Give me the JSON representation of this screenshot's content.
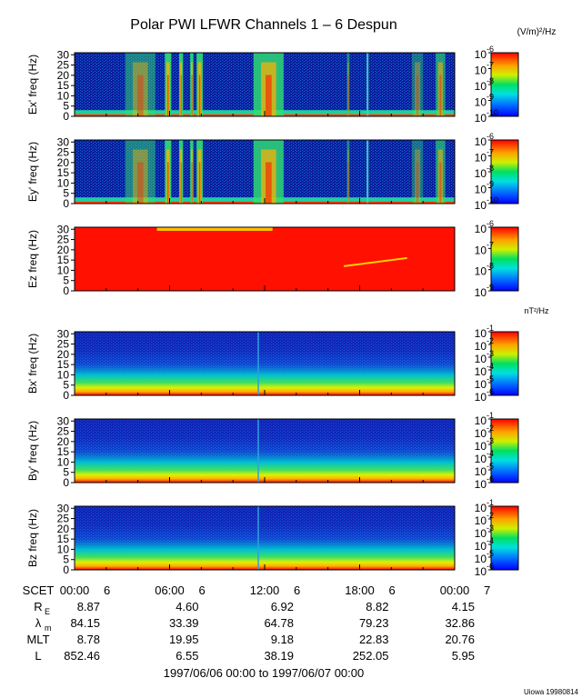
{
  "title": "Polar PWI LFWR Channels 1 – 6 Despun",
  "electric_unit": "(V/m)²/Hz",
  "magnetic_unit": "nT²/Hz",
  "credit": "Uiowa 19980814",
  "date_range": "1997/06/06 00:00 to 1997/06/07 00:00",
  "colors": {
    "low": "#0000ff",
    "mid": "#00e060",
    "high": "#ff0000"
  },
  "chart_data": {
    "type": "heatmap",
    "x_axis": {
      "label": "SCET",
      "ticks": [
        {
          "hour": 0,
          "label": "00:00",
          "day": "6"
        },
        {
          "hour": 6,
          "label": "06:00",
          "day": "6"
        },
        {
          "hour": 12,
          "label": "12:00",
          "day": "6"
        },
        {
          "hour": 18,
          "label": "18:00",
          "day": "6"
        },
        {
          "hour": 24,
          "label": "00:00",
          "day": "7"
        }
      ],
      "range": [
        0,
        24
      ]
    },
    "y_axis": {
      "range": [
        0,
        31
      ],
      "ticks": [
        "0",
        "5",
        "10",
        "15",
        "20",
        "25",
        "30"
      ]
    },
    "panels": [
      {
        "id": "ex",
        "ylabel": "Ex' freq (Hz)",
        "colorbar": [
          "10",
          "10",
          "10",
          "10",
          "10"
        ],
        "exponents": [
          "-10",
          "-9",
          "-8",
          "-7",
          "-6"
        ],
        "cmin": -10,
        "cmax": -6,
        "kind": "e"
      },
      {
        "id": "ey",
        "ylabel": "Ey' freq (Hz)",
        "colorbar": [
          "10",
          "10",
          "10",
          "10",
          "10"
        ],
        "exponents": [
          "-10",
          "-9",
          "-8",
          "-7",
          "-6"
        ],
        "cmin": -10,
        "cmax": -6,
        "kind": "e"
      },
      {
        "id": "ez",
        "ylabel": "Ez freq (Hz)",
        "colorbar": [
          "10",
          "10",
          "10",
          "10"
        ],
        "exponents": [
          "-9",
          "-8",
          "-7",
          "-6"
        ],
        "cmin": -9,
        "cmax": -6,
        "kind": "ez"
      },
      {
        "id": "bx",
        "ylabel": "Bx' freq (Hz)",
        "colorbar": [
          "10",
          "10",
          "10",
          "10",
          "10",
          "10"
        ],
        "exponents": [
          "-6",
          "-5",
          "-4",
          "-3",
          "-2",
          "-1"
        ],
        "cmin": -6,
        "cmax": -1,
        "kind": "b"
      },
      {
        "id": "by",
        "ylabel": "By' freq (Hz)",
        "colorbar": [
          "10",
          "10",
          "10",
          "10",
          "10",
          "10"
        ],
        "exponents": [
          "-6",
          "-5",
          "-4",
          "-3",
          "-2",
          "-1"
        ],
        "cmin": -6,
        "cmax": -1,
        "kind": "b"
      },
      {
        "id": "bz",
        "ylabel": "Bz freq (Hz)",
        "colorbar": [
          "10",
          "10",
          "10",
          "10",
          "10",
          "10"
        ],
        "exponents": [
          "-6",
          "-5",
          "-4",
          "-3",
          "-2",
          "-1"
        ],
        "cmin": -6,
        "cmax": -1,
        "kind": "b"
      }
    ],
    "ephemeris": [
      {
        "label": "R",
        "sub": "E",
        "values": [
          "8.87",
          "4.60",
          "6.92",
          "8.82",
          "4.15"
        ]
      },
      {
        "label": "λ",
        "sub": "m",
        "values": [
          "84.15",
          "33.39",
          "64.78",
          "79.23",
          "32.86"
        ]
      },
      {
        "label": "MLT",
        "sub": "",
        "values": [
          "8.78",
          "19.95",
          "9.18",
          "22.83",
          "20.76"
        ]
      },
      {
        "label": "L",
        "sub": "",
        "values": [
          "852.46",
          "6.55",
          "38.19",
          "252.05",
          "5.95"
        ]
      }
    ]
  }
}
